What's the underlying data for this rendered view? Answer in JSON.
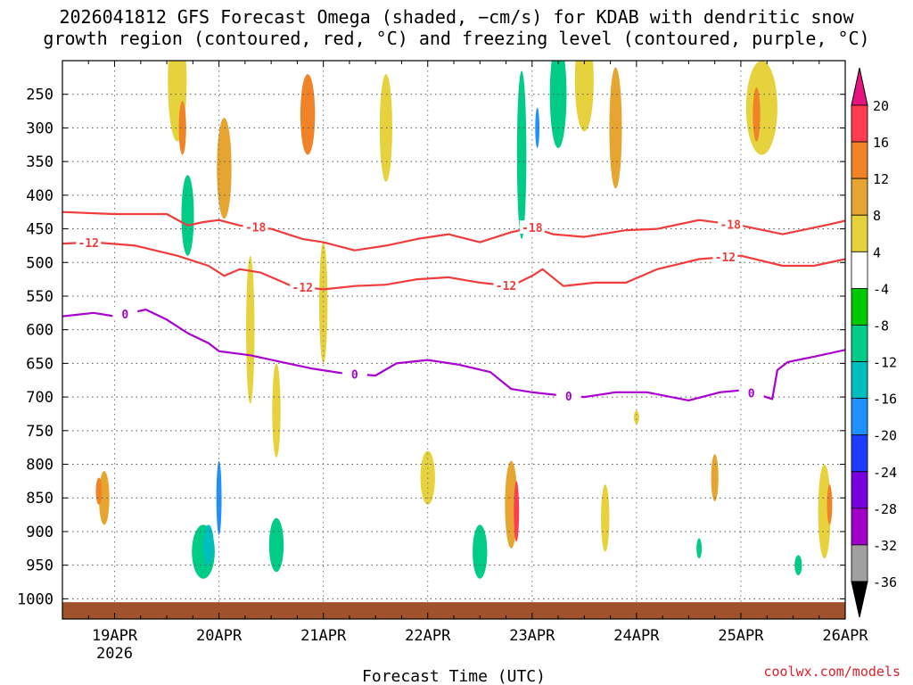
{
  "chart_data": {
    "type": "heatmap",
    "title_line1": "2026041812 GFS Forecast Omega (shaded, −cm/s) for KDAB with dendritic snow",
    "title_line2": "growth region (contoured, red, °C) and freezing level (contoured, purple, °C)",
    "xlabel": "Forecast Time (UTC)",
    "ylabel": "",
    "x_tick_labels": [
      "19APR",
      "20APR",
      "21APR",
      "22APR",
      "23APR",
      "24APR",
      "25APR",
      "26APR"
    ],
    "x_sub_label": "2026",
    "x_range_days": [
      18.5,
      26.0
    ],
    "y_levels": [
      250,
      300,
      350,
      400,
      450,
      500,
      550,
      600,
      650,
      700,
      750,
      800,
      850,
      900,
      950,
      1000
    ],
    "y_range": [
      200,
      1030
    ],
    "colorbar": {
      "labels": [
        "20",
        "16",
        "12",
        "8",
        "4",
        "-4",
        "-8",
        "-12",
        "-16",
        "-20",
        "-24",
        "-28",
        "-32",
        "-36"
      ],
      "colors": [
        "#ff3c50",
        "#f08228",
        "#e6a530",
        "#e6d23c",
        "#ffffff",
        "#00c800",
        "#00cc88",
        "#00bebe",
        "#1e90ff",
        "#1e3cff",
        "#7800dc",
        "#a000c8",
        "#a0a0a0"
      ],
      "top_color": "#e6147d",
      "bottom_color": "#000000"
    },
    "contours": [
      {
        "name": "-18",
        "label": "-18",
        "color": "#f03c3c",
        "x": [
          18.5,
          19.0,
          19.5,
          19.7,
          19.85,
          20.0,
          20.2,
          20.5,
          20.8,
          21.0,
          21.3,
          21.6,
          21.9,
          22.2,
          22.5,
          22.8,
          23.0,
          23.2,
          23.5,
          23.9,
          24.2,
          24.6,
          25.0,
          25.4,
          25.8,
          26.0
        ],
        "p": [
          425,
          428,
          428,
          445,
          440,
          437,
          445,
          450,
          465,
          470,
          482,
          475,
          465,
          458,
          470,
          455,
          448,
          458,
          462,
          452,
          450,
          437,
          445,
          458,
          445,
          438
        ]
      },
      {
        "name": "-12",
        "label": "-12",
        "color": "#f03c3c",
        "x": [
          18.5,
          18.8,
          19.2,
          19.6,
          19.9,
          20.05,
          20.2,
          20.4,
          20.7,
          21.0,
          21.3,
          21.6,
          21.9,
          22.2,
          22.5,
          22.8,
          23.0,
          23.1,
          23.3,
          23.6,
          23.9,
          24.2,
          24.6,
          25.0,
          25.4,
          25.7,
          26.0
        ],
        "p": [
          472,
          470,
          475,
          490,
          505,
          520,
          510,
          515,
          535,
          540,
          535,
          533,
          525,
          522,
          530,
          535,
          520,
          510,
          535,
          530,
          530,
          510,
          495,
          490,
          505,
          505,
          495
        ]
      },
      {
        "name": "0",
        "label": "0",
        "color": "#a800d0",
        "x": [
          18.5,
          18.8,
          19.0,
          19.3,
          19.5,
          19.7,
          19.9,
          20.0,
          20.3,
          20.6,
          20.9,
          21.2,
          21.5,
          21.7,
          22.0,
          22.3,
          22.6,
          22.8,
          23.0,
          23.3,
          23.5,
          23.8,
          24.1,
          24.5,
          24.8,
          25.0,
          25.2,
          25.3,
          25.35,
          25.45,
          25.7,
          26.0
        ],
        "p": [
          580,
          575,
          580,
          570,
          585,
          605,
          620,
          632,
          638,
          648,
          658,
          665,
          668,
          650,
          645,
          652,
          663,
          688,
          693,
          698,
          700,
          693,
          693,
          705,
          693,
          690,
          698,
          703,
          660,
          648,
          640,
          630
        ]
      }
    ],
    "omega_cells": [
      {
        "x": 18.9,
        "p": 850,
        "w": 0.1,
        "h": 80,
        "v": 8
      },
      {
        "x": 18.85,
        "p": 840,
        "w": 0.06,
        "h": 40,
        "v": 12
      },
      {
        "x": 19.6,
        "p": 230,
        "w": 0.18,
        "h": 180,
        "v": 6
      },
      {
        "x": 19.65,
        "p": 300,
        "w": 0.07,
        "h": 80,
        "v": 12
      },
      {
        "x": 19.7,
        "p": 430,
        "w": 0.12,
        "h": 120,
        "v": -8
      },
      {
        "x": 19.85,
        "p": 930,
        "w": 0.22,
        "h": 80,
        "v": -8
      },
      {
        "x": 19.9,
        "p": 920,
        "w": 0.1,
        "h": 60,
        "v": -12
      },
      {
        "x": 20.0,
        "p": 850,
        "w": 0.05,
        "h": 110,
        "v": -16
      },
      {
        "x": 20.05,
        "p": 360,
        "w": 0.14,
        "h": 150,
        "v": 8
      },
      {
        "x": 20.3,
        "p": 600,
        "w": 0.08,
        "h": 220,
        "v": 6
      },
      {
        "x": 20.55,
        "p": 920,
        "w": 0.14,
        "h": 80,
        "v": -8
      },
      {
        "x": 20.55,
        "p": 720,
        "w": 0.08,
        "h": 140,
        "v": 6
      },
      {
        "x": 20.85,
        "p": 280,
        "w": 0.14,
        "h": 120,
        "v": 12
      },
      {
        "x": 21.0,
        "p": 560,
        "w": 0.08,
        "h": 180,
        "v": 6
      },
      {
        "x": 21.6,
        "p": 300,
        "w": 0.12,
        "h": 160,
        "v": 6
      },
      {
        "x": 22.0,
        "p": 820,
        "w": 0.14,
        "h": 80,
        "v": 5
      },
      {
        "x": 22.5,
        "p": 930,
        "w": 0.14,
        "h": 80,
        "v": -10
      },
      {
        "x": 22.8,
        "p": 860,
        "w": 0.12,
        "h": 130,
        "v": 10
      },
      {
        "x": 22.85,
        "p": 870,
        "w": 0.05,
        "h": 90,
        "v": 20
      },
      {
        "x": 22.9,
        "p": 340,
        "w": 0.09,
        "h": 250,
        "v": -8
      },
      {
        "x": 23.05,
        "p": 300,
        "w": 0.04,
        "h": 60,
        "v": -18
      },
      {
        "x": 23.25,
        "p": 250,
        "w": 0.16,
        "h": 160,
        "v": -8
      },
      {
        "x": 23.5,
        "p": 230,
        "w": 0.18,
        "h": 150,
        "v": 5
      },
      {
        "x": 23.8,
        "p": 300,
        "w": 0.12,
        "h": 180,
        "v": 8
      },
      {
        "x": 23.7,
        "p": 880,
        "w": 0.08,
        "h": 100,
        "v": 6
      },
      {
        "x": 24.75,
        "p": 820,
        "w": 0.07,
        "h": 70,
        "v": 10
      },
      {
        "x": 25.2,
        "p": 270,
        "w": 0.3,
        "h": 140,
        "v": 5
      },
      {
        "x": 25.15,
        "p": 280,
        "w": 0.07,
        "h": 80,
        "v": 12
      },
      {
        "x": 25.8,
        "p": 870,
        "w": 0.12,
        "h": 140,
        "v": 6
      },
      {
        "x": 25.85,
        "p": 860,
        "w": 0.05,
        "h": 60,
        "v": 12
      },
      {
        "x": 25.55,
        "p": 950,
        "w": 0.07,
        "h": 30,
        "v": -8
      },
      {
        "x": 24.6,
        "p": 925,
        "w": 0.05,
        "h": 30,
        "v": -8
      },
      {
        "x": 24.0,
        "p": 730,
        "w": 0.05,
        "h": 20,
        "v": 5
      }
    ]
  },
  "credit": "coolwx.com/models"
}
